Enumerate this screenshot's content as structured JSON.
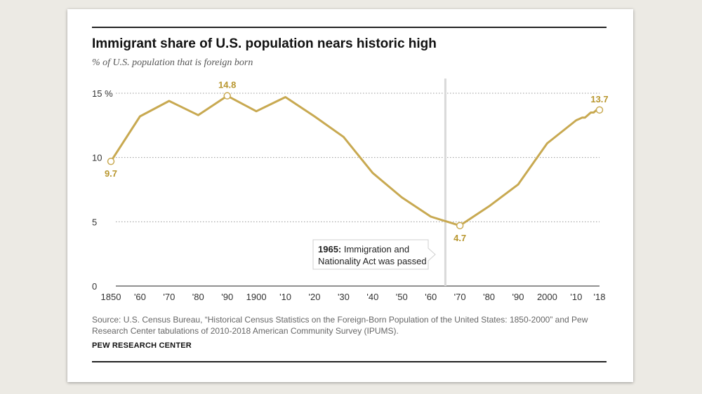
{
  "title": "Immigrant share of U.S. population nears historic high",
  "subtitle": "% of U.S. population that is foreign born",
  "source": "Source: U.S. Census Bureau, “Historical Census Statistics on the Foreign-Born Population of the United States: 1850-2000” and Pew Research Center tabulations of 2010-2018 American Community Survey (IPUMS).",
  "brand": "PEW RESEARCH CENTER",
  "annotation": {
    "bold": "1965:",
    "text": " Immigration and",
    "line2": "Nationality Act was passed"
  },
  "colors": {
    "line": "#c8a951",
    "label": "#b8962e",
    "marker_line": "#d9d9d9"
  },
  "chart_data": {
    "type": "line",
    "series": [
      {
        "x": [
          1850,
          1860,
          1870,
          1880,
          1890,
          1900,
          1910,
          1920,
          1930,
          1940,
          1950,
          1960,
          1970,
          1980,
          1990,
          2000,
          2010,
          2011,
          2012,
          2013,
          2014,
          2015,
          2016,
          2017,
          2018
        ],
        "values": [
          9.7,
          13.2,
          14.4,
          13.3,
          14.8,
          13.6,
          14.7,
          13.2,
          11.6,
          8.8,
          6.9,
          5.4,
          4.7,
          6.2,
          7.9,
          11.1,
          12.9,
          13.0,
          13.1,
          13.1,
          13.3,
          13.5,
          13.5,
          13.7,
          13.7
        ]
      }
    ],
    "xlim": [
      1850,
      2018
    ],
    "ylim": [
      0,
      15
    ],
    "yticks": [
      0,
      5,
      10,
      15
    ],
    "ytick_labels": [
      "0",
      "5",
      "10",
      "15 %"
    ],
    "xticks": [
      {
        "x": 1850,
        "label": "1850"
      },
      {
        "x": 1860,
        "label": "'60"
      },
      {
        "x": 1870,
        "label": "'70"
      },
      {
        "x": 1880,
        "label": "'80"
      },
      {
        "x": 1890,
        "label": "'90"
      },
      {
        "x": 1900,
        "label": "1900"
      },
      {
        "x": 1910,
        "label": "'10"
      },
      {
        "x": 1920,
        "label": "'20"
      },
      {
        "x": 1930,
        "label": "'30"
      },
      {
        "x": 1940,
        "label": "'40"
      },
      {
        "x": 1950,
        "label": "'50"
      },
      {
        "x": 1960,
        "label": "'60"
      },
      {
        "x": 1970,
        "label": "'70"
      },
      {
        "x": 1980,
        "label": "'80"
      },
      {
        "x": 1990,
        "label": "'90"
      },
      {
        "x": 2000,
        "label": "2000"
      },
      {
        "x": 2010,
        "label": "'10"
      },
      {
        "x": 2018,
        "label": "'18"
      }
    ],
    "highlights": [
      {
        "x": 1850,
        "y": 9.7,
        "label": "9.7",
        "pos": "below"
      },
      {
        "x": 1890,
        "y": 14.8,
        "label": "14.8",
        "pos": "above"
      },
      {
        "x": 1970,
        "y": 4.7,
        "label": "4.7",
        "pos": "below"
      },
      {
        "x": 2018,
        "y": 13.7,
        "label": "13.7",
        "pos": "above"
      }
    ],
    "event_line_x": 1965,
    "grid": true
  }
}
